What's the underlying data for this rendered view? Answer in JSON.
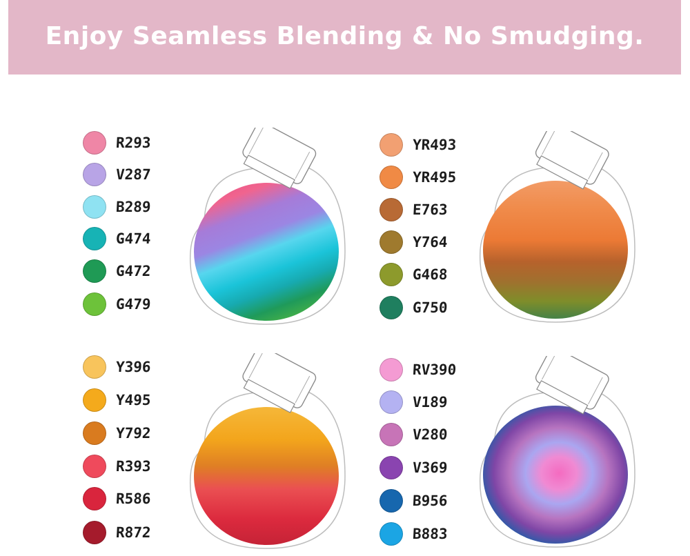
{
  "banner": {
    "title": "Enjoy Seamless Blending & No Smudging."
  },
  "panels": [
    {
      "swatches": [
        {
          "code": "R293",
          "color": "#ef86a6"
        },
        {
          "code": "V287",
          "color": "#b8a4e6"
        },
        {
          "code": "B289",
          "color": "#8fe2f2"
        },
        {
          "code": "G474",
          "color": "#17b3b5"
        },
        {
          "code": "G472",
          "color": "#1f9a55"
        },
        {
          "code": "G479",
          "color": "#6dc23a"
        }
      ]
    },
    {
      "swatches": [
        {
          "code": "YR493",
          "color": "#f2a072"
        },
        {
          "code": "YR495",
          "color": "#f08a45"
        },
        {
          "code": "E763",
          "color": "#b86a35"
        },
        {
          "code": "Y764",
          "color": "#9f7a2e"
        },
        {
          "code": "G468",
          "color": "#8d9a2c"
        },
        {
          "code": "G750",
          "color": "#1f7f5f"
        }
      ]
    },
    {
      "swatches": [
        {
          "code": "Y396",
          "color": "#f8c45c"
        },
        {
          "code": "Y495",
          "color": "#f4aa1c"
        },
        {
          "code": "Y792",
          "color": "#d97b1f"
        },
        {
          "code": "R393",
          "color": "#ef4a5c"
        },
        {
          "code": "R586",
          "color": "#d9253d"
        },
        {
          "code": "R872",
          "color": "#a51b2c"
        }
      ]
    },
    {
      "swatches": [
        {
          "code": "RV390",
          "color": "#f49bd3"
        },
        {
          "code": "V189",
          "color": "#b4b2f2"
        },
        {
          "code": "V280",
          "color": "#c774b7"
        },
        {
          "code": "V369",
          "color": "#8a44b0"
        },
        {
          "code": "B956",
          "color": "#1767ae"
        },
        {
          "code": "B883",
          "color": "#1ba5e4"
        }
      ]
    }
  ]
}
